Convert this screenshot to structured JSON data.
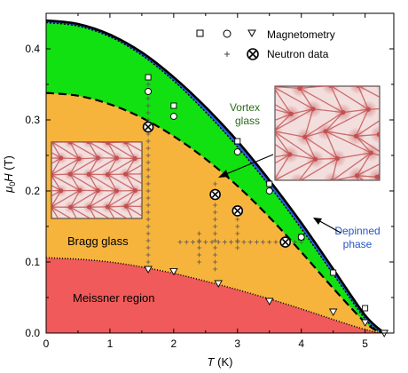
{
  "chart_data": {
    "type": "area",
    "title": "",
    "xlabel_symbol": "T",
    "xlabel_unit": "(K)",
    "ylabel_prefix": "μ",
    "ylabel_sub": "0",
    "ylabel_symbol": "H",
    "ylabel_unit": "(T)",
    "xlim": [
      0,
      5.45
    ],
    "ylim": [
      0,
      0.45
    ],
    "x_ticks": [
      0,
      1,
      2,
      3,
      4,
      5
    ],
    "x_tick_labels": [
      "0",
      "1",
      "2",
      "3",
      "4",
      "5"
    ],
    "y_ticks": [
      0,
      0.1,
      0.2,
      0.3,
      0.4
    ],
    "y_tick_labels": [
      "0.0",
      "0.1",
      "0.2",
      "0.3",
      "0.4"
    ],
    "grid": false,
    "legend": {
      "placement": "top-right",
      "magnetometry_label": "Magnetometry",
      "neutron_label": "Neutron data"
    },
    "phase_labels": {
      "meissner": "Meissner region",
      "bragg": "Bragg glass",
      "vortex_line1": "Vortex",
      "vortex_line2": "glass",
      "depinned_line1": "Depinned",
      "depinned_line2": "phase"
    },
    "colors": {
      "meissner": "#f05a5a",
      "bragg": "#f7b43c",
      "vortex": "#11e011",
      "depinned": "#2e5fe0",
      "vortex_label": "#2b6a1a",
      "depinned_label": "#2255cc",
      "lattice_bg": "#f3dede",
      "lattice_dot": "#c25050"
    },
    "boundaries": {
      "upper_critical": {
        "x": [
          0,
          0.5,
          1.0,
          1.5,
          2.0,
          2.5,
          3.0,
          3.5,
          4.0,
          4.5,
          5.0,
          5.3
        ],
        "y": [
          0.44,
          0.435,
          0.42,
          0.395,
          0.36,
          0.318,
          0.27,
          0.215,
          0.155,
          0.09,
          0.025,
          0.0
        ]
      },
      "depinning": {
        "x": [
          0,
          0.5,
          1.0,
          1.5,
          2.0,
          2.5,
          3.0,
          3.5,
          4.0,
          4.5,
          5.0,
          5.25
        ],
        "y": [
          0.437,
          0.432,
          0.417,
          0.391,
          0.355,
          0.311,
          0.262,
          0.207,
          0.147,
          0.083,
          0.02,
          0.0
        ]
      },
      "order_disorder": {
        "x": [
          0,
          0.5,
          1.0,
          1.5,
          2.0,
          2.5,
          3.0,
          3.5,
          4.0,
          4.5,
          5.0,
          5.25
        ],
        "y": [
          0.338,
          0.334,
          0.322,
          0.303,
          0.277,
          0.245,
          0.207,
          0.163,
          0.114,
          0.063,
          0.015,
          0.0
        ]
      },
      "lower_critical": {
        "x": [
          0,
          0.5,
          1.0,
          1.5,
          2.0,
          2.5,
          3.0,
          3.5,
          4.0,
          4.5,
          5.0,
          5.25
        ],
        "y": [
          0.106,
          0.104,
          0.1,
          0.093,
          0.084,
          0.073,
          0.061,
          0.048,
          0.034,
          0.019,
          0.005,
          0.0
        ]
      }
    },
    "series": [
      {
        "name": "Magnetometry",
        "marker": "square",
        "x": [
          1.6,
          2.0,
          3.0,
          3.5,
          4.0,
          4.5,
          5.0
        ],
        "y": [
          0.36,
          0.32,
          0.27,
          0.21,
          0.135,
          0.085,
          0.035
        ]
      },
      {
        "name": "Magnetometry",
        "marker": "circle",
        "x": [
          1.6,
          2.0,
          3.0,
          3.5,
          4.0
        ],
        "y": [
          0.34,
          0.305,
          0.255,
          0.2,
          0.135
        ]
      },
      {
        "name": "Magnetometry",
        "marker": "triangle-down",
        "x": [
          1.6,
          2.0,
          2.7,
          3.5,
          4.5,
          5.0,
          5.3
        ],
        "y": [
          0.09,
          0.087,
          0.07,
          0.045,
          0.03,
          0.015,
          0.0
        ]
      },
      {
        "name": "Neutron data",
        "marker": "circle-x",
        "x": [
          1.6,
          2.65,
          3.0,
          3.75
        ],
        "y": [
          0.29,
          0.195,
          0.172,
          0.128
        ]
      }
    ],
    "neutron_scan_points": [
      {
        "x": [
          1.6,
          1.6,
          1.6,
          1.6,
          1.6,
          1.6,
          1.6,
          1.6,
          1.6,
          1.6,
          1.6,
          1.6,
          1.6,
          1.6,
          1.6,
          1.6,
          1.6,
          1.6,
          1.6,
          1.6,
          1.6,
          1.6,
          1.6,
          1.6,
          1.6,
          1.6,
          1.6
        ],
        "y": [
          0.1,
          0.11,
          0.12,
          0.13,
          0.14,
          0.15,
          0.16,
          0.17,
          0.18,
          0.19,
          0.2,
          0.21,
          0.22,
          0.23,
          0.24,
          0.25,
          0.26,
          0.27,
          0.28,
          0.29,
          0.3,
          0.31,
          0.32,
          0.33,
          0.34,
          0.35,
          0.36
        ]
      },
      {
        "x": [
          2.65,
          2.65,
          2.65,
          2.65,
          2.65,
          2.65,
          2.65,
          2.65,
          2.65,
          2.65,
          2.65,
          2.65,
          2.65
        ],
        "y": [
          0.09,
          0.1,
          0.11,
          0.12,
          0.13,
          0.14,
          0.15,
          0.16,
          0.17,
          0.18,
          0.19,
          0.2,
          0.21
        ]
      },
      {
        "x": [
          2.4,
          2.4,
          2.4,
          2.4,
          2.4
        ],
        "y": [
          0.1,
          0.11,
          0.12,
          0.13,
          0.14
        ]
      },
      {
        "x": [
          3.0,
          3.0,
          3.0,
          3.0,
          3.0,
          3.0
        ],
        "y": [
          0.12,
          0.13,
          0.14,
          0.15,
          0.16,
          0.17
        ]
      },
      {
        "x": [
          2.1,
          2.2,
          2.3,
          2.4,
          2.5,
          2.6,
          2.7,
          2.8,
          2.9,
          3.0,
          3.1,
          3.2,
          3.3,
          3.4,
          3.5,
          3.6,
          3.7,
          3.8,
          3.9,
          4.0
        ],
        "y": [
          0.128,
          0.128,
          0.128,
          0.128,
          0.128,
          0.128,
          0.128,
          0.128,
          0.128,
          0.128,
          0.128,
          0.128,
          0.128,
          0.128,
          0.128,
          0.128,
          0.128,
          0.128,
          0.128,
          0.128
        ]
      }
    ]
  }
}
